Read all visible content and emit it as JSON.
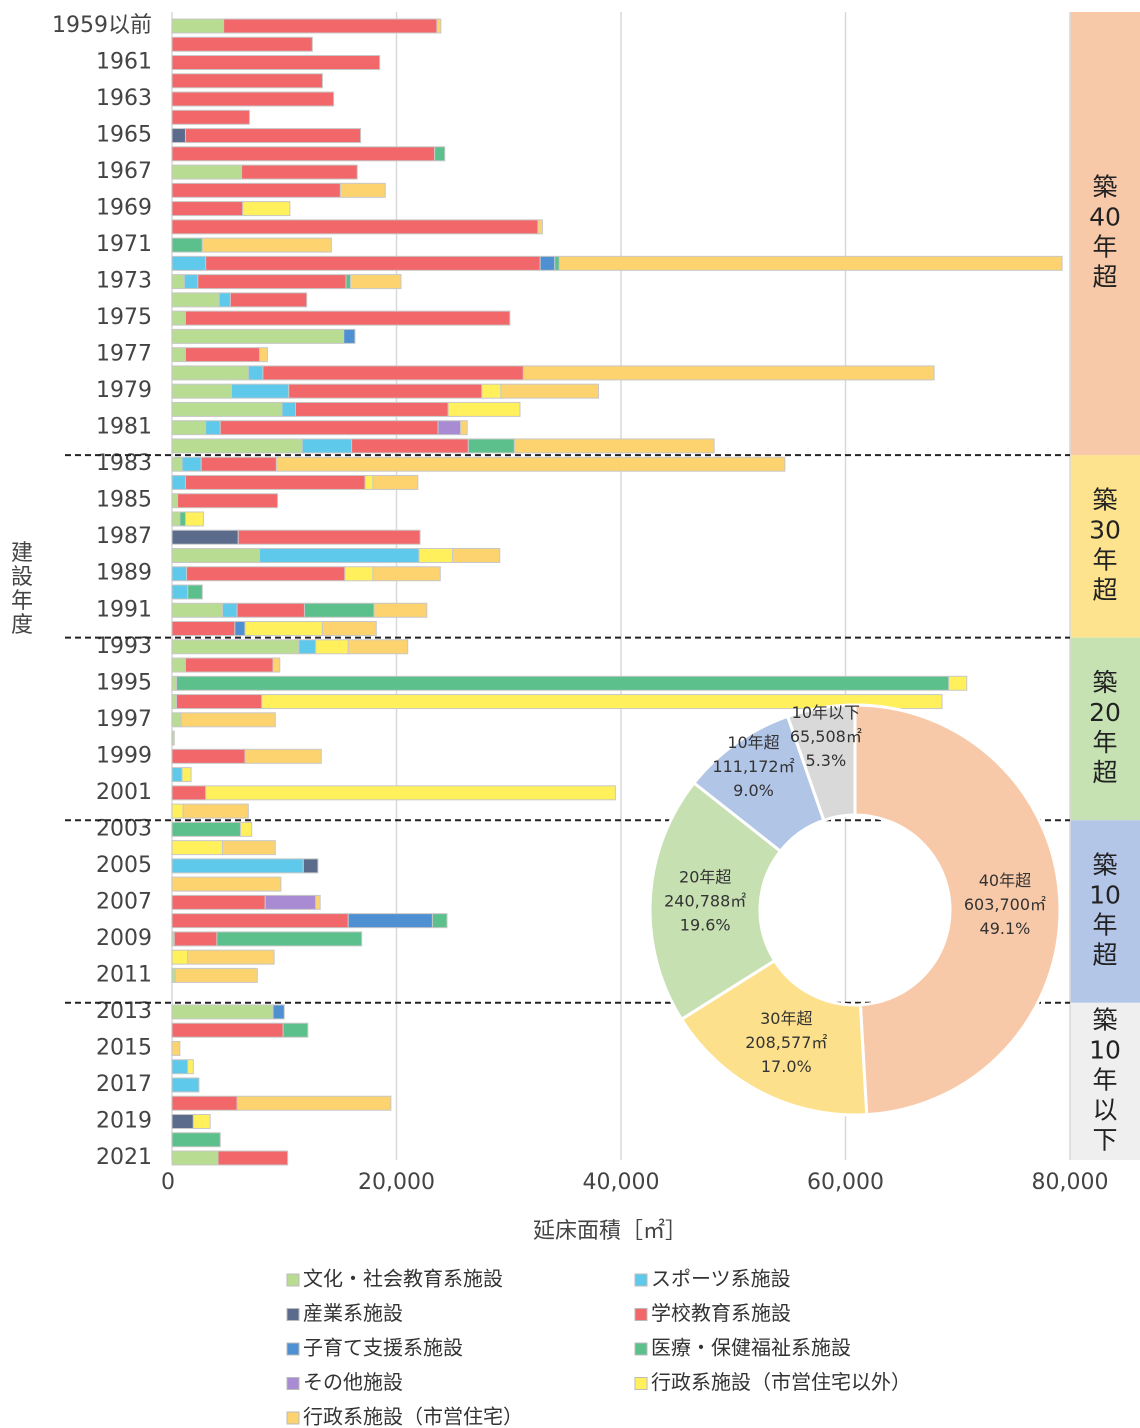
{
  "chart_data": [
    {
      "type": "bar",
      "orientation": "horizontal",
      "stacked": true,
      "xlabel": "延床面積［㎡］",
      "ylabel": "建設年度",
      "categories": [
        "1959以前",
        null,
        "1961",
        null,
        "1963",
        null,
        "1965",
        null,
        "1967",
        null,
        "1969",
        null,
        "1971",
        null,
        "1973",
        null,
        "1975",
        null,
        "1977",
        null,
        "1979",
        null,
        "1981",
        null,
        "1983",
        null,
        "1985",
        null,
        "1987",
        null,
        "1989",
        null,
        "1991",
        null,
        "1993",
        null,
        "1995",
        null,
        "1997",
        null,
        "1999",
        null,
        "2001",
        null,
        "2003",
        null,
        "2005",
        null,
        "2007",
        null,
        "2009",
        null,
        "2011",
        null,
        "2013",
        null,
        "2015",
        null,
        "2017",
        null,
        "2019",
        null,
        "2021"
      ],
      "xlim": [
        0,
        80000
      ],
      "xticks": [
        0,
        {
          "value": 20000,
          "label": "20,000"
        },
        {
          "value": 40000,
          "label": "40,000"
        },
        {
          "value": 60000,
          "label": "60,000"
        },
        {
          "value": 80000,
          "label": "80,000"
        }
      ],
      "grid": true,
      "series": [
        {
          "name": "文化・社会教育系施設",
          "color": "#b8dc92",
          "values": [
            4600,
            0,
            0,
            0,
            0,
            0,
            0,
            0,
            6200,
            0,
            0,
            0,
            0,
            0,
            1100,
            4200,
            1200,
            15300,
            1200,
            6800,
            5300,
            9800,
            3000,
            11600,
            900,
            0,
            500,
            700,
            0,
            7800,
            0,
            0,
            4500,
            0,
            11300,
            1200,
            400,
            400,
            800,
            200,
            0,
            0,
            0,
            0,
            0,
            0,
            0,
            0,
            0,
            0,
            200,
            0,
            300,
            0,
            9000,
            0,
            0,
            0,
            0,
            0,
            0,
            0,
            4100
          ]
        },
        {
          "name": "スポーツ系施設",
          "color": "#5ec9ea",
          "values": [
            0,
            0,
            0,
            0,
            0,
            0,
            0,
            0,
            0,
            0,
            0,
            0,
            0,
            3000,
            1200,
            1000,
            0,
            0,
            0,
            1300,
            5100,
            1200,
            1300,
            4400,
            1700,
            1200,
            0,
            0,
            0,
            14200,
            1300,
            1400,
            1300,
            0,
            1500,
            0,
            0,
            0,
            0,
            0,
            0,
            900,
            0,
            0,
            0,
            0,
            11700,
            0,
            0,
            0,
            0,
            0,
            0,
            0,
            0,
            0,
            0,
            1400,
            2400,
            0,
            0,
            0,
            0
          ]
        },
        {
          "name": "産業系施設",
          "color": "#5a6b8c",
          "values": [
            0,
            0,
            0,
            0,
            0,
            0,
            1200,
            0,
            0,
            0,
            0,
            0,
            0,
            0,
            0,
            0,
            0,
            0,
            0,
            0,
            0,
            0,
            0,
            0,
            0,
            0,
            0,
            0,
            5900,
            0,
            0,
            0,
            0,
            0,
            0,
            0,
            0,
            0,
            0,
            0,
            0,
            0,
            0,
            0,
            0,
            0,
            1300,
            0,
            0,
            0,
            0,
            0,
            0,
            0,
            0,
            0,
            0,
            0,
            0,
            0,
            1900,
            0,
            0
          ]
        },
        {
          "name": "学校教育系施設",
          "color": "#f2676a",
          "values": [
            19000,
            12500,
            18500,
            13400,
            14400,
            6900,
            15600,
            23400,
            10300,
            15000,
            6300,
            32600,
            0,
            29800,
            13200,
            6800,
            28900,
            0,
            6600,
            23200,
            17200,
            13600,
            19400,
            10400,
            6700,
            16000,
            8900,
            0,
            16200,
            0,
            14100,
            0,
            6000,
            5600,
            0,
            7800,
            0,
            7600,
            0,
            0,
            6500,
            0,
            3000,
            0,
            0,
            0,
            0,
            0,
            8300,
            15700,
            3800,
            0,
            0,
            0,
            0,
            9900,
            0,
            0,
            0,
            5800,
            0,
            0,
            6200
          ]
        },
        {
          "name": "子育て支援系施設",
          "color": "#4e90d2",
          "values": [
            0,
            0,
            0,
            0,
            0,
            0,
            0,
            0,
            0,
            0,
            0,
            0,
            0,
            1300,
            0,
            0,
            0,
            1000,
            0,
            0,
            0,
            0,
            0,
            0,
            0,
            0,
            0,
            0,
            0,
            0,
            0,
            0,
            0,
            900,
            0,
            0,
            0,
            0,
            0,
            0,
            0,
            0,
            0,
            0,
            0,
            0,
            0,
            0,
            0,
            7500,
            0,
            0,
            0,
            0,
            1000,
            0,
            0,
            0,
            0,
            0,
            0,
            0,
            0
          ]
        },
        {
          "name": "医療・保健福祉系施設",
          "color": "#5cc08c",
          "values": [
            0,
            0,
            0,
            0,
            0,
            0,
            0,
            900,
            0,
            0,
            0,
            0,
            2700,
            400,
            400,
            0,
            0,
            0,
            0,
            0,
            0,
            0,
            0,
            4100,
            0,
            0,
            0,
            500,
            0,
            0,
            0,
            1300,
            6200,
            0,
            0,
            0,
            68800,
            0,
            0,
            0,
            0,
            0,
            0,
            0,
            6100,
            0,
            0,
            0,
            0,
            1300,
            12900,
            0,
            0,
            0,
            0,
            2200,
            0,
            0,
            0,
            0,
            0,
            4300,
            0
          ]
        },
        {
          "name": "その他施設",
          "color": "#a88bd2",
          "values": [
            0,
            0,
            0,
            0,
            0,
            0,
            0,
            0,
            0,
            0,
            0,
            0,
            0,
            0,
            0,
            0,
            0,
            0,
            0,
            0,
            0,
            0,
            2000,
            0,
            0,
            0,
            0,
            0,
            0,
            0,
            0,
            0,
            0,
            0,
            0,
            0,
            0,
            0,
            0,
            0,
            0,
            0,
            0,
            0,
            0,
            0,
            0,
            0,
            4500,
            0,
            0,
            0,
            0,
            0,
            0,
            0,
            0,
            0,
            0,
            0,
            0,
            0,
            0
          ]
        },
        {
          "name": "行政系施設（市営住宅以外）",
          "color": "#fff05c",
          "values": [
            0,
            0,
            0,
            0,
            0,
            0,
            0,
            0,
            0,
            0,
            4200,
            0,
            0,
            0,
            0,
            0,
            0,
            0,
            0,
            0,
            1700,
            6400,
            0,
            0,
            0,
            700,
            0,
            1600,
            0,
            3000,
            2500,
            0,
            0,
            6900,
            2900,
            0,
            1600,
            60600,
            0,
            0,
            0,
            800,
            36500,
            1000,
            1000,
            4500,
            0,
            0,
            0,
            0,
            0,
            1400,
            0,
            0,
            0,
            0,
            0,
            500,
            0,
            0,
            1500,
            0,
            0
          ]
        },
        {
          "name": "行政系施設（市営住宅）",
          "color": "#fcd36e",
          "values": [
            350,
            0,
            0,
            0,
            0,
            0,
            0,
            0,
            0,
            4000,
            0,
            400,
            11500,
            44800,
            4500,
            0,
            0,
            0,
            700,
            36600,
            8700,
            0,
            600,
            17800,
            45300,
            4000,
            0,
            0,
            0,
            4200,
            6000,
            0,
            4700,
            4800,
            5300,
            600,
            0,
            0,
            8400,
            0,
            6800,
            0,
            0,
            5800,
            0,
            4700,
            0,
            9700,
            400,
            0,
            0,
            7700,
            7300,
            0,
            0,
            0,
            700,
            0,
            0,
            13700,
            0,
            0,
            0
          ]
        }
      ]
    },
    {
      "type": "pie",
      "donut": true,
      "categories": [
        "40年超",
        "30年超",
        "20年超",
        "10年超",
        "10年以下"
      ],
      "values": [
        603700,
        208577,
        240788,
        111172,
        65508
      ],
      "value_labels": [
        "603,700㎡",
        "208,577㎡",
        "240,788㎡",
        "111,172㎡",
        "65,508㎡"
      ],
      "percent_labels": [
        "49.1%",
        "17.0%",
        "19.6%",
        "9.0%",
        "5.3%"
      ],
      "colors": [
        "#f8c9a8",
        "#fde08c",
        "#c6e0b2",
        "#b1c5e6",
        "#d9d9d9"
      ]
    }
  ],
  "eras": [
    {
      "label": "築40年超",
      "color": "#f8c9a8"
    },
    {
      "label": "築30年超",
      "color": "#fde38e"
    },
    {
      "label": "築20年超",
      "color": "#c6e2b2"
    },
    {
      "label": "築10年超",
      "color": "#b3c6e8"
    },
    {
      "label": "築10年以下",
      "color": "#efefef"
    }
  ]
}
